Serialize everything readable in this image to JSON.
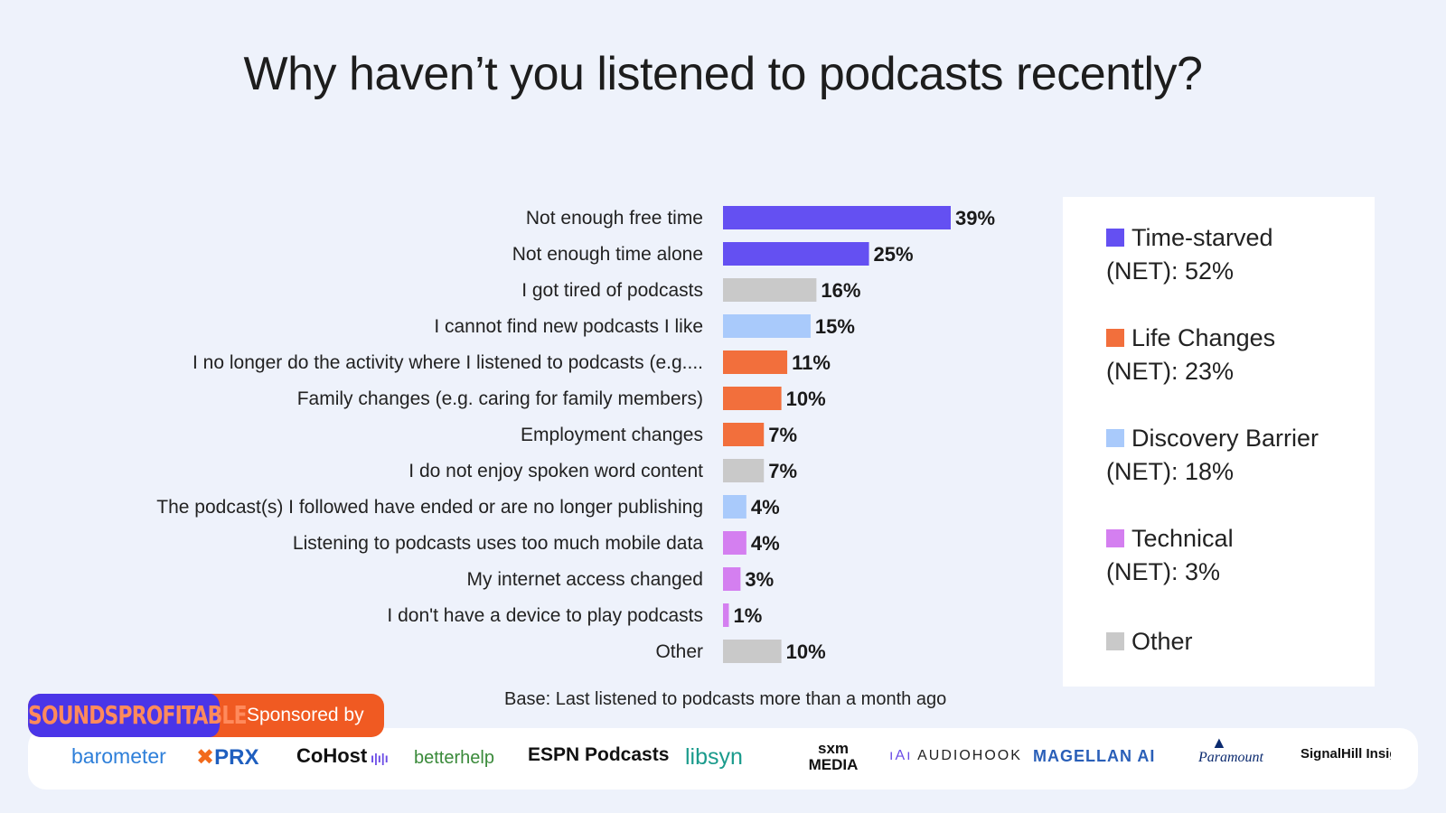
{
  "title": "Why haven’t you listened to podcasts recently?",
  "chart_data": {
    "type": "bar",
    "orientation": "horizontal",
    "categories": [
      "Not enough free time",
      "Not enough time alone",
      "I got tired of podcasts",
      "I cannot find new podcasts I like",
      "I no longer do the activity where I listened to podcasts (e.g....",
      "Family changes (e.g. caring for family members)",
      "Employment changes",
      "I do not enjoy spoken word content",
      "The podcast(s) I followed have ended or are no longer publishing",
      "Listening to podcasts uses too much mobile data",
      "My internet access changed",
      "I don't have a device to play podcasts",
      "Other"
    ],
    "values": [
      39,
      25,
      16,
      15,
      11,
      10,
      7,
      7,
      4,
      4,
      3,
      1,
      10
    ],
    "value_labels": [
      "39%",
      "25%",
      "16%",
      "15%",
      "11%",
      "10%",
      "7%",
      "7%",
      "4%",
      "4%",
      "3%",
      "1%",
      "10%"
    ],
    "groups": [
      "time",
      "time",
      "other",
      "discovery",
      "life",
      "life",
      "life",
      "other",
      "discovery",
      "technical",
      "technical",
      "technical",
      "other"
    ],
    "group_colors": {
      "time": "#6450f2",
      "life": "#f26f3c",
      "discovery": "#a9cafb",
      "technical": "#d47ff0",
      "other": "#c9c9c9"
    },
    "xlim": [
      0,
      39
    ],
    "grid": false,
    "legend_position": "right",
    "base_note": "Base: Last listened to podcasts more than a month ago"
  },
  "legend": [
    {
      "label": "Time-starved",
      "sublabel": "(NET): 52%",
      "color": "#6450f2"
    },
    {
      "label": "Life Changes",
      "sublabel": "(NET): 23%",
      "color": "#f26f3c"
    },
    {
      "label": "Discovery Barrier",
      "sublabel": "(NET): 18%",
      "color": "#a9cafb"
    },
    {
      "label": "Technical",
      "sublabel": "(NET): 3%",
      "color": "#d47ff0"
    },
    {
      "label": "Other",
      "sublabel": "",
      "color": "#c9c9c9"
    }
  ],
  "sponsor": {
    "brand": "SOUNDSPROFITABLE",
    "text": "Sponsored by",
    "logos": [
      "barometer",
      "PRX",
      "CoHost",
      "betterhelp",
      "ESPN Podcasts",
      "libsyn",
      "sxm MEDIA",
      "AUDIOHOOK",
      "MAGELLAN AI",
      "Paramount",
      "SignalHill Insights"
    ]
  }
}
